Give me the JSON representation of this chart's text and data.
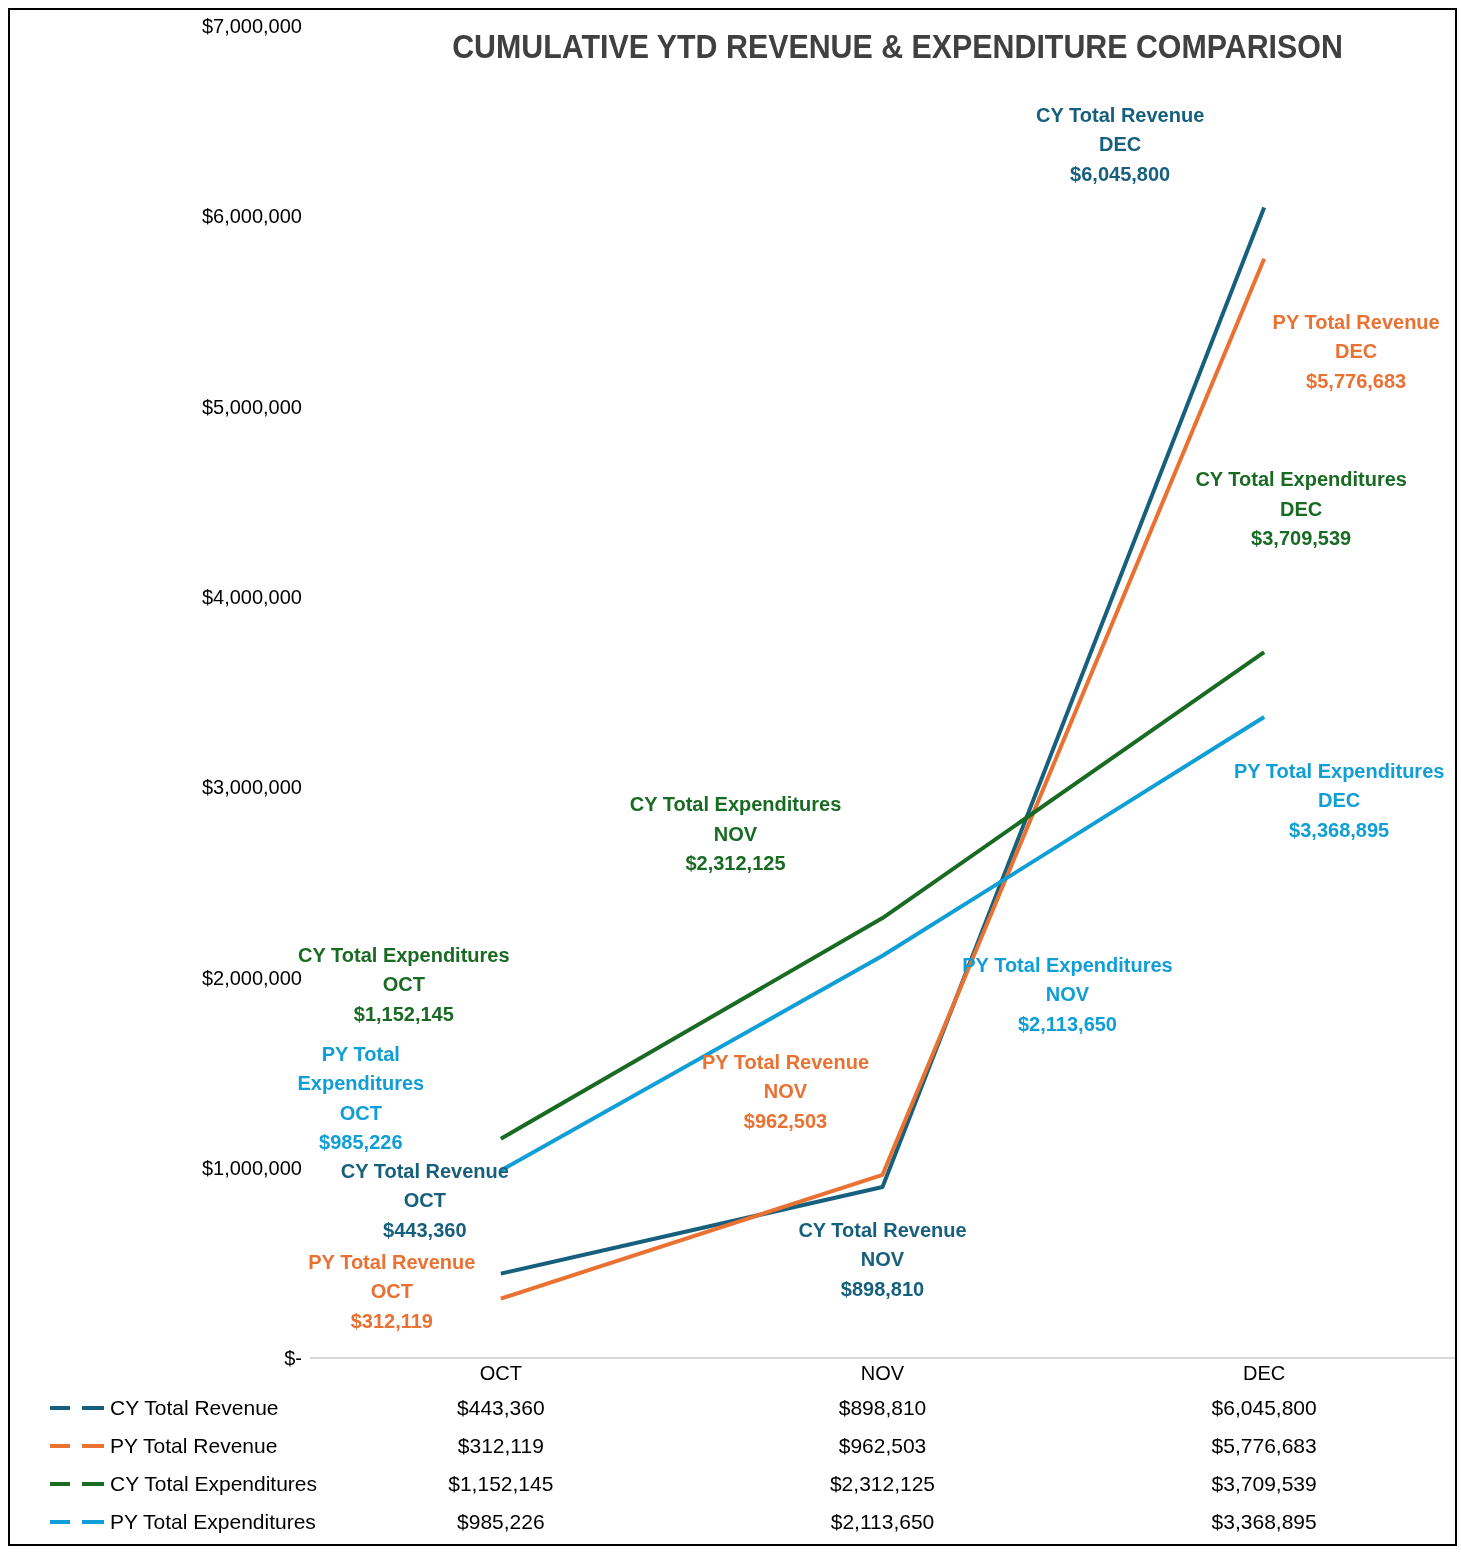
{
  "chart_data": {
    "type": "line",
    "title": "CUMULATIVE YTD REVENUE & EXPENDITURE COMPARISON",
    "categories": [
      "OCT",
      "NOV",
      "DEC"
    ],
    "series": [
      {
        "name": "CY Total Revenue",
        "color": "#17607d",
        "values": [
          443360,
          898810,
          6045800
        ],
        "value_labels": [
          "$443,360",
          "$898,810",
          "$6,045,800"
        ]
      },
      {
        "name": "PY Total Revenue",
        "color": "#e97132",
        "values": [
          312119,
          962503,
          5776683
        ],
        "value_labels": [
          "$312,119",
          "$962,503",
          "$5,776,683"
        ]
      },
      {
        "name": "CY Total Expenditures",
        "color": "#196b24",
        "values": [
          1152145,
          2312125,
          3709539
        ],
        "value_labels": [
          "$1,152,145",
          "$2,312,125",
          "$3,709,539"
        ]
      },
      {
        "name": "PY Total Expenditures",
        "color": "#0f9ed5",
        "values": [
          985226,
          2113650,
          3368895
        ],
        "value_labels": [
          "$985,226",
          "$2,113,650",
          "$3,368,895"
        ]
      }
    ],
    "ylim": [
      0,
      7000000
    ],
    "yticks": [
      {
        "value": 0,
        "label": "$-"
      },
      {
        "value": 1000000,
        "label": "$1,000,000"
      },
      {
        "value": 2000000,
        "label": "$2,000,000"
      },
      {
        "value": 3000000,
        "label": "$3,000,000"
      },
      {
        "value": 4000000,
        "label": "$4,000,000"
      },
      {
        "value": 5000000,
        "label": "$5,000,000"
      },
      {
        "value": 6000000,
        "label": "$6,000,000"
      },
      {
        "value": 7000000,
        "label": "$7,000,000"
      }
    ],
    "grid": false,
    "legend": "bottom",
    "marker": "none",
    "line_style": "solid"
  }
}
